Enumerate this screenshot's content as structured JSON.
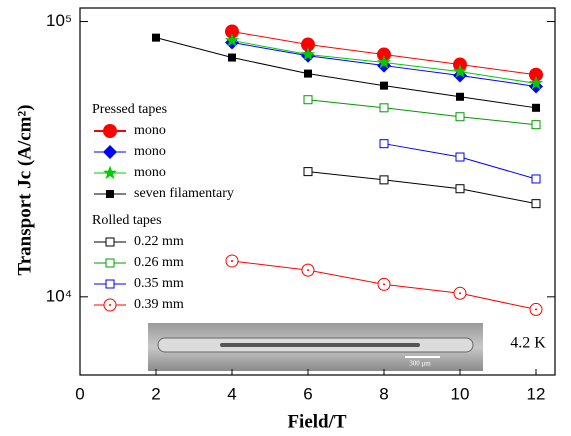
{
  "chart_data": {
    "type": "line",
    "x_label": "Field/T",
    "y_label": "Transport Jc (A/cm²)",
    "log_y": true,
    "x": [
      2,
      4,
      6,
      8,
      10,
      12
    ],
    "xlim": [
      0,
      12.5
    ],
    "xticks": [
      0,
      2,
      4,
      6,
      8,
      10,
      12
    ],
    "ylim": [
      5200,
      112000
    ],
    "yticks": [
      {
        "value": 10000,
        "label": "10⁴"
      },
      {
        "value": 100000,
        "label": "10⁵"
      }
    ],
    "legend_headings": [
      "Pressed tapes",
      "Rolled tapes"
    ],
    "series": [
      {
        "name": "mono",
        "color": "#ff0000",
        "marker": "circle",
        "values": [
          null,
          92000,
          82500,
          75900,
          69800,
          64100
        ]
      },
      {
        "name": "mono",
        "color": "#0000ff",
        "marker": "diamond",
        "values": [
          null,
          83900,
          75100,
          69200,
          63700,
          58100
        ]
      },
      {
        "name": "mono",
        "color": "#00cc00",
        "marker": "star",
        "values": [
          null,
          85300,
          75900,
          71000,
          65800,
          59600
        ]
      },
      {
        "name": "seven filamentary",
        "color": "#000000",
        "marker": "square",
        "values": [
          87400,
          74000,
          64700,
          58500,
          53300,
          48600
        ]
      },
      {
        "name": "0.22 mm",
        "color": "#000000",
        "marker": "open-square",
        "values": [
          null,
          null,
          28500,
          26600,
          24700,
          21800
        ]
      },
      {
        "name": "0.26 mm",
        "color": "#009900",
        "marker": "open-square",
        "values": [
          null,
          null,
          52000,
          48600,
          45100,
          42200
        ]
      },
      {
        "name": "0.35 mm",
        "color": "#0000ff",
        "marker": "open-square",
        "values": [
          null,
          null,
          null,
          36000,
          32200,
          26800
        ]
      },
      {
        "name": "0.39 mm",
        "color": "#ff0000",
        "marker": "dot-circle",
        "values": [
          null,
          13500,
          12500,
          11100,
          10300,
          9000
        ]
      }
    ],
    "annotation": "4.2 K",
    "inset_scale": "300 μm"
  }
}
